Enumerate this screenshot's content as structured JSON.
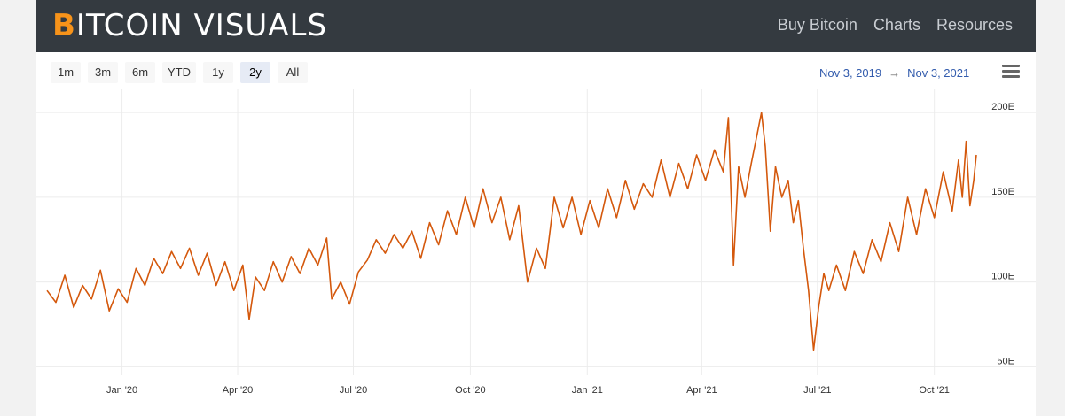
{
  "header": {
    "logo_first": "B",
    "logo_rest": "ITCOIN VISUALS",
    "nav": [
      "Buy Bitcoin",
      "Charts",
      "Resources"
    ]
  },
  "range_buttons": [
    "1m",
    "3m",
    "6m",
    "YTD",
    "1y",
    "2y",
    "All"
  ],
  "active_range": "2y",
  "date_range": {
    "from": "Nov 3, 2019",
    "arrow": "→",
    "to": "Nov 3, 2021"
  },
  "colors": {
    "line": "#d4580c",
    "accent": "#f7931a",
    "topbar": "#343a40"
  },
  "chart_data": {
    "type": "line",
    "title": "",
    "xlabel": "",
    "ylabel": "",
    "grid": true,
    "ylim": [
      45,
      210
    ],
    "y_ticks": [
      {
        "value": 50,
        "label": "50E"
      },
      {
        "value": 100,
        "label": "100E"
      },
      {
        "value": 150,
        "label": "150E"
      },
      {
        "value": 200,
        "label": "200E"
      }
    ],
    "x_ticks": [
      "Jan '20",
      "Apr '20",
      "Jul '20",
      "Oct '20",
      "Jan '21",
      "Apr '21",
      "Jul '21",
      "Oct '21"
    ],
    "x_tick_dates": [
      "2020-01-01",
      "2020-04-01",
      "2020-07-01",
      "2020-10-01",
      "2021-01-01",
      "2021-04-01",
      "2021-07-01",
      "2021-10-01"
    ],
    "x_range": [
      "2019-11-03",
      "2021-11-03"
    ],
    "series": [
      {
        "values": [
          [
            "2019-11-03",
            95
          ],
          [
            "2019-11-10",
            88
          ],
          [
            "2019-11-17",
            104
          ],
          [
            "2019-11-24",
            85
          ],
          [
            "2019-12-01",
            98
          ],
          [
            "2019-12-08",
            90
          ],
          [
            "2019-12-15",
            107
          ],
          [
            "2019-12-22",
            83
          ],
          [
            "2019-12-29",
            96
          ],
          [
            "2020-01-05",
            88
          ],
          [
            "2020-01-12",
            108
          ],
          [
            "2020-01-19",
            98
          ],
          [
            "2020-01-26",
            114
          ],
          [
            "2020-02-02",
            105
          ],
          [
            "2020-02-09",
            118
          ],
          [
            "2020-02-16",
            108
          ],
          [
            "2020-02-23",
            120
          ],
          [
            "2020-03-01",
            104
          ],
          [
            "2020-03-08",
            117
          ],
          [
            "2020-03-15",
            98
          ],
          [
            "2020-03-22",
            112
          ],
          [
            "2020-03-29",
            95
          ],
          [
            "2020-04-05",
            110
          ],
          [
            "2020-04-10",
            78
          ],
          [
            "2020-04-15",
            103
          ],
          [
            "2020-04-22",
            95
          ],
          [
            "2020-04-29",
            112
          ],
          [
            "2020-05-06",
            100
          ],
          [
            "2020-05-13",
            115
          ],
          [
            "2020-05-20",
            105
          ],
          [
            "2020-05-27",
            120
          ],
          [
            "2020-06-03",
            110
          ],
          [
            "2020-06-10",
            126
          ],
          [
            "2020-06-14",
            90
          ],
          [
            "2020-06-21",
            100
          ],
          [
            "2020-06-28",
            87
          ],
          [
            "2020-07-05",
            106
          ],
          [
            "2020-07-12",
            113
          ],
          [
            "2020-07-19",
            125
          ],
          [
            "2020-07-26",
            117
          ],
          [
            "2020-08-02",
            128
          ],
          [
            "2020-08-09",
            120
          ],
          [
            "2020-08-16",
            130
          ],
          [
            "2020-08-23",
            114
          ],
          [
            "2020-08-30",
            135
          ],
          [
            "2020-09-06",
            122
          ],
          [
            "2020-09-13",
            142
          ],
          [
            "2020-09-20",
            128
          ],
          [
            "2020-09-27",
            150
          ],
          [
            "2020-10-04",
            132
          ],
          [
            "2020-10-11",
            155
          ],
          [
            "2020-10-18",
            135
          ],
          [
            "2020-10-25",
            150
          ],
          [
            "2020-11-01",
            125
          ],
          [
            "2020-11-08",
            145
          ],
          [
            "2020-11-15",
            100
          ],
          [
            "2020-11-22",
            120
          ],
          [
            "2020-11-29",
            108
          ],
          [
            "2020-12-06",
            150
          ],
          [
            "2020-12-13",
            132
          ],
          [
            "2020-12-20",
            150
          ],
          [
            "2020-12-27",
            128
          ],
          [
            "2021-01-03",
            148
          ],
          [
            "2021-01-10",
            132
          ],
          [
            "2021-01-17",
            155
          ],
          [
            "2021-01-24",
            138
          ],
          [
            "2021-01-31",
            160
          ],
          [
            "2021-02-07",
            143
          ],
          [
            "2021-02-14",
            158
          ],
          [
            "2021-02-21",
            150
          ],
          [
            "2021-02-28",
            172
          ],
          [
            "2021-03-07",
            150
          ],
          [
            "2021-03-14",
            170
          ],
          [
            "2021-03-21",
            155
          ],
          [
            "2021-03-28",
            175
          ],
          [
            "2021-04-04",
            160
          ],
          [
            "2021-04-11",
            178
          ],
          [
            "2021-04-18",
            165
          ],
          [
            "2021-04-22",
            197
          ],
          [
            "2021-04-26",
            110
          ],
          [
            "2021-04-30",
            168
          ],
          [
            "2021-05-05",
            150
          ],
          [
            "2021-05-10",
            170
          ],
          [
            "2021-05-14",
            185
          ],
          [
            "2021-05-18",
            200
          ],
          [
            "2021-05-21",
            180
          ],
          [
            "2021-05-25",
            130
          ],
          [
            "2021-05-29",
            168
          ],
          [
            "2021-06-03",
            150
          ],
          [
            "2021-06-08",
            160
          ],
          [
            "2021-06-12",
            135
          ],
          [
            "2021-06-16",
            148
          ],
          [
            "2021-06-20",
            120
          ],
          [
            "2021-06-24",
            95
          ],
          [
            "2021-06-28",
            60
          ],
          [
            "2021-07-02",
            85
          ],
          [
            "2021-07-06",
            105
          ],
          [
            "2021-07-10",
            95
          ],
          [
            "2021-07-16",
            110
          ],
          [
            "2021-07-23",
            95
          ],
          [
            "2021-07-30",
            118
          ],
          [
            "2021-08-06",
            105
          ],
          [
            "2021-08-13",
            125
          ],
          [
            "2021-08-20",
            112
          ],
          [
            "2021-08-27",
            135
          ],
          [
            "2021-09-03",
            118
          ],
          [
            "2021-09-10",
            150
          ],
          [
            "2021-09-17",
            128
          ],
          [
            "2021-09-24",
            155
          ],
          [
            "2021-10-01",
            138
          ],
          [
            "2021-10-08",
            165
          ],
          [
            "2021-10-15",
            142
          ],
          [
            "2021-10-20",
            172
          ],
          [
            "2021-10-23",
            150
          ],
          [
            "2021-10-26",
            183
          ],
          [
            "2021-10-29",
            145
          ],
          [
            "2021-11-01",
            160
          ],
          [
            "2021-11-03",
            175
          ]
        ]
      }
    ]
  }
}
